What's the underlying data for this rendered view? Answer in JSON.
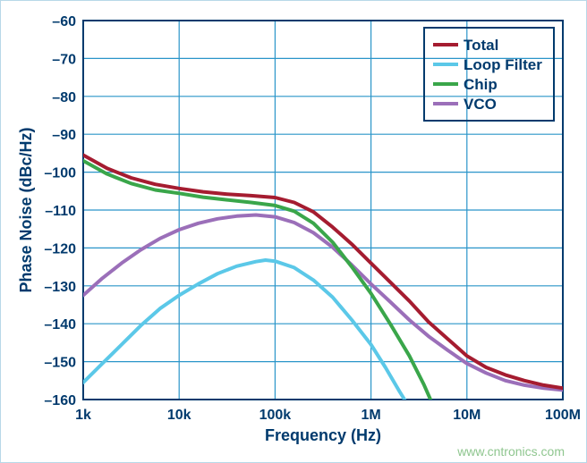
{
  "chart": {
    "type": "line-log-x",
    "xlabel": "Frequency (Hz)",
    "ylabel": "Phase Noise (dBc/Hz)",
    "label_fontsize": 18,
    "tick_fontsize": 16,
    "label_color": "#003a6d",
    "grid_color": "#2a95c9",
    "border_color": "#003a6d",
    "background_color": "#ffffff",
    "line_width": 4,
    "x": {
      "scale": "log",
      "min_exp": 3,
      "max_exp": 8,
      "ticks": [
        {
          "exp": 3,
          "label": "1k"
        },
        {
          "exp": 4,
          "label": "10k"
        },
        {
          "exp": 5,
          "label": "100k"
        },
        {
          "exp": 6,
          "label": "1M"
        },
        {
          "exp": 7,
          "label": "10M"
        },
        {
          "exp": 8,
          "label": "100M"
        }
      ]
    },
    "y": {
      "scale": "linear",
      "min": -160,
      "max": -60,
      "step": 10,
      "tick_prefix": "–",
      "ticks": [
        -60,
        -70,
        -80,
        -90,
        -100,
        -110,
        -120,
        -130,
        -140,
        -150,
        -160
      ]
    },
    "legend": {
      "position": "top-right",
      "items": [
        {
          "key": "total",
          "label": "Total",
          "color": "#a51c30"
        },
        {
          "key": "loopfilter",
          "label": "Loop Filter",
          "color": "#5bc8e8"
        },
        {
          "key": "chip",
          "label": "Chip",
          "color": "#3aa64a"
        },
        {
          "key": "vco",
          "label": "VCO",
          "color": "#9b6fb9"
        }
      ]
    },
    "series": {
      "total": {
        "color": "#a51c30",
        "points": [
          [
            3.0,
            -95.5
          ],
          [
            3.25,
            -99.0
          ],
          [
            3.5,
            -101.5
          ],
          [
            3.75,
            -103.2
          ],
          [
            4.0,
            -104.3
          ],
          [
            4.25,
            -105.2
          ],
          [
            4.5,
            -105.8
          ],
          [
            4.75,
            -106.2
          ],
          [
            5.0,
            -106.7
          ],
          [
            5.2,
            -108.0
          ],
          [
            5.4,
            -110.5
          ],
          [
            5.6,
            -114.5
          ],
          [
            5.8,
            -119.0
          ],
          [
            6.0,
            -124.0
          ],
          [
            6.2,
            -129.0
          ],
          [
            6.4,
            -134.0
          ],
          [
            6.6,
            -139.5
          ],
          [
            6.8,
            -144.0
          ],
          [
            7.0,
            -148.5
          ],
          [
            7.2,
            -151.5
          ],
          [
            7.4,
            -153.5
          ],
          [
            7.6,
            -155.0
          ],
          [
            7.8,
            -156.2
          ],
          [
            8.0,
            -157.0
          ]
        ]
      },
      "loopfilter": {
        "color": "#5bc8e8",
        "points": [
          [
            3.0,
            -155.5
          ],
          [
            3.2,
            -150.5
          ],
          [
            3.4,
            -145.5
          ],
          [
            3.6,
            -140.5
          ],
          [
            3.8,
            -136.0
          ],
          [
            4.0,
            -132.5
          ],
          [
            4.2,
            -129.5
          ],
          [
            4.4,
            -126.8
          ],
          [
            4.6,
            -124.8
          ],
          [
            4.8,
            -123.6
          ],
          [
            4.9,
            -123.2
          ],
          [
            5.0,
            -123.5
          ],
          [
            5.2,
            -125.2
          ],
          [
            5.4,
            -128.5
          ],
          [
            5.6,
            -133.0
          ],
          [
            5.8,
            -139.0
          ],
          [
            6.0,
            -145.5
          ],
          [
            6.15,
            -151.5
          ],
          [
            6.3,
            -158.0
          ],
          [
            6.35,
            -160.0
          ]
        ]
      },
      "chip": {
        "color": "#3aa64a",
        "points": [
          [
            3.0,
            -97.0
          ],
          [
            3.25,
            -100.5
          ],
          [
            3.5,
            -103.0
          ],
          [
            3.75,
            -104.7
          ],
          [
            4.0,
            -105.6
          ],
          [
            4.25,
            -106.6
          ],
          [
            4.5,
            -107.3
          ],
          [
            4.75,
            -108.0
          ],
          [
            5.0,
            -108.8
          ],
          [
            5.2,
            -110.3
          ],
          [
            5.4,
            -113.5
          ],
          [
            5.6,
            -118.5
          ],
          [
            5.8,
            -125.0
          ],
          [
            6.0,
            -132.0
          ],
          [
            6.2,
            -140.0
          ],
          [
            6.4,
            -148.5
          ],
          [
            6.55,
            -156.0
          ],
          [
            6.62,
            -160.0
          ]
        ]
      },
      "vco": {
        "color": "#9b6fb9",
        "points": [
          [
            3.0,
            -132.5
          ],
          [
            3.2,
            -128.0
          ],
          [
            3.4,
            -124.0
          ],
          [
            3.6,
            -120.5
          ],
          [
            3.8,
            -117.5
          ],
          [
            4.0,
            -115.2
          ],
          [
            4.2,
            -113.5
          ],
          [
            4.4,
            -112.3
          ],
          [
            4.6,
            -111.6
          ],
          [
            4.8,
            -111.3
          ],
          [
            5.0,
            -111.8
          ],
          [
            5.2,
            -113.3
          ],
          [
            5.4,
            -116.0
          ],
          [
            5.6,
            -119.8
          ],
          [
            5.8,
            -124.5
          ],
          [
            6.0,
            -129.5
          ],
          [
            6.2,
            -134.2
          ],
          [
            6.4,
            -139.0
          ],
          [
            6.6,
            -143.3
          ],
          [
            6.8,
            -147.0
          ],
          [
            7.0,
            -150.5
          ],
          [
            7.2,
            -153.0
          ],
          [
            7.4,
            -155.0
          ],
          [
            7.6,
            -156.2
          ],
          [
            7.8,
            -157.0
          ],
          [
            8.0,
            -157.5
          ]
        ]
      }
    }
  },
  "watermark": "www.cntronics.com"
}
